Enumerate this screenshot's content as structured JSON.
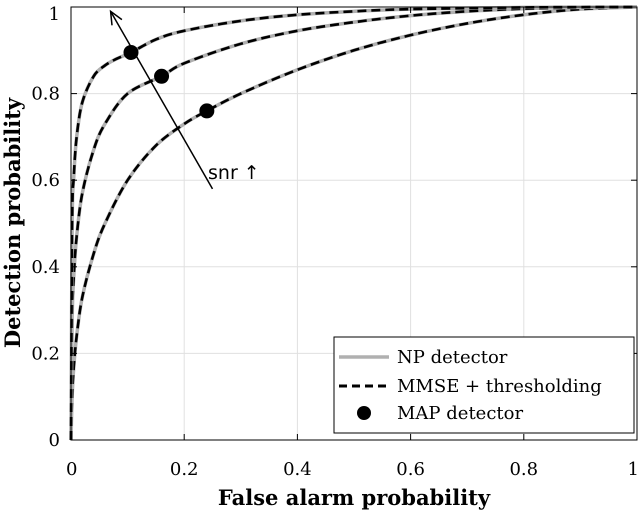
{
  "chart_data": {
    "type": "line",
    "title": "",
    "xlabel": "False alarm probability",
    "ylabel": "Detection probability",
    "xlim": [
      0,
      1
    ],
    "ylim": [
      0,
      1
    ],
    "x_ticks": [
      "0",
      "0.2",
      "0.4",
      "0.6",
      "0.8",
      "1"
    ],
    "y_ticks": [
      "0",
      "0.2",
      "0.4",
      "0.6",
      "0.8",
      "1"
    ],
    "grid": true,
    "legend_position": "bottom-right",
    "legend": {
      "np": "NP detector",
      "mmse": "MMSE + thresholding",
      "map": "MAP detector"
    },
    "annotation": {
      "text": "snr ↑",
      "arrow_from": [
        0.25,
        0.58
      ],
      "arrow_to": [
        0.07,
        0.99
      ]
    },
    "colors": {
      "np": "#b0b0b0",
      "mmse": "#000000",
      "map": "#000000",
      "grid": "#e0e0e0"
    },
    "series": [
      {
        "curve": "low-snr",
        "x": [
          0,
          0.002,
          0.005,
          0.01,
          0.02,
          0.04,
          0.06,
          0.1,
          0.15,
          0.2,
          0.24,
          0.3,
          0.4,
          0.5,
          0.6,
          0.7,
          0.8,
          0.9,
          1.0
        ],
        "y": [
          0,
          0.1,
          0.17,
          0.24,
          0.33,
          0.43,
          0.5,
          0.6,
          0.68,
          0.73,
          0.76,
          0.8,
          0.855,
          0.9,
          0.935,
          0.962,
          0.982,
          0.995,
          1.0
        ]
      },
      {
        "curve": "mid-snr",
        "x": [
          0,
          0.002,
          0.005,
          0.01,
          0.02,
          0.04,
          0.06,
          0.1,
          0.16,
          0.2,
          0.3,
          0.4,
          0.5,
          0.6,
          0.7,
          0.8,
          0.9,
          1.0
        ],
        "y": [
          0,
          0.28,
          0.38,
          0.47,
          0.57,
          0.67,
          0.73,
          0.8,
          0.84,
          0.87,
          0.915,
          0.945,
          0.965,
          0.98,
          0.99,
          0.996,
          0.999,
          1.0
        ]
      },
      {
        "curve": "high-snr",
        "x": [
          0,
          0.002,
          0.005,
          0.01,
          0.02,
          0.04,
          0.06,
          0.08,
          0.106,
          0.15,
          0.2,
          0.3,
          0.4,
          0.5,
          0.6,
          0.8,
          1.0
        ],
        "y": [
          0,
          0.5,
          0.61,
          0.7,
          0.78,
          0.84,
          0.865,
          0.88,
          0.895,
          0.925,
          0.945,
          0.968,
          0.982,
          0.99,
          0.995,
          0.999,
          1.0
        ]
      }
    ],
    "map_points": [
      {
        "x": 0.106,
        "y": 0.895
      },
      {
        "x": 0.16,
        "y": 0.84
      },
      {
        "x": 0.24,
        "y": 0.76
      }
    ]
  }
}
